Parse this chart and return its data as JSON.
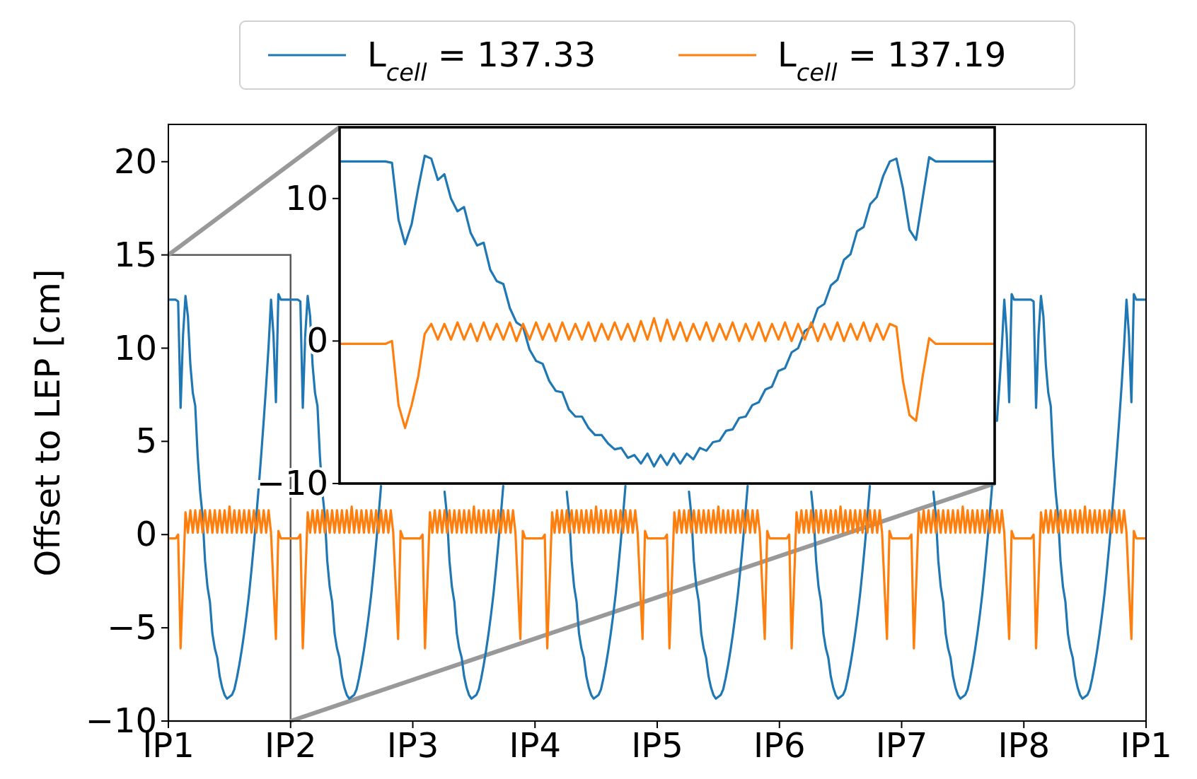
{
  "chart_data": [
    {
      "type": "line",
      "ylabel": "Offset to LEP [cm]",
      "legend": "top",
      "grid": false,
      "categories": [
        "IP1",
        null,
        null,
        null,
        null,
        null,
        null,
        null,
        null,
        null,
        null,
        null,
        null,
        null,
        null,
        null,
        null,
        null,
        null,
        null,
        null,
        null,
        null,
        null,
        null,
        null,
        null,
        null,
        null,
        null,
        null,
        null,
        null,
        null,
        null,
        null,
        null,
        null,
        null,
        null,
        null,
        null,
        null,
        null,
        null,
        null,
        null,
        null,
        null,
        null,
        "IP2",
        null,
        null,
        null,
        null,
        null,
        null,
        null,
        null,
        null,
        null,
        null,
        null,
        null,
        null,
        null,
        null,
        null,
        null,
        null,
        null,
        null,
        null,
        null,
        null,
        null,
        null,
        null,
        null,
        null,
        null,
        null,
        null,
        null,
        null,
        null,
        null,
        null,
        null,
        null,
        null,
        null,
        null,
        null,
        null,
        null,
        null,
        null,
        null,
        null,
        "IP3",
        null,
        null,
        null,
        null,
        null,
        null,
        null,
        null,
        null,
        null,
        null,
        null,
        null,
        null,
        null,
        null,
        null,
        null,
        null,
        null,
        null,
        null,
        null,
        null,
        null,
        null,
        null,
        null,
        null,
        null,
        null,
        null,
        null,
        null,
        null,
        null,
        null,
        null,
        null,
        null,
        null,
        null,
        null,
        null,
        null,
        null,
        null,
        null,
        null,
        "IP4",
        null,
        null,
        null,
        null,
        null,
        null,
        null,
        null,
        null,
        null,
        null,
        null,
        null,
        null,
        null,
        null,
        null,
        null,
        null,
        null,
        null,
        null,
        null,
        null,
        null,
        null,
        null,
        null,
        null,
        null,
        null,
        null,
        null,
        null,
        null,
        null,
        null,
        null,
        null,
        null,
        null,
        null,
        null,
        null,
        null,
        null,
        null,
        null,
        null,
        "IP5",
        null,
        null,
        null,
        null,
        null,
        null,
        null,
        null,
        null,
        null,
        null,
        null,
        null,
        null,
        null,
        null,
        null,
        null,
        null,
        null,
        null,
        null,
        null,
        null,
        null,
        null,
        null,
        null,
        null,
        null,
        null,
        null,
        null,
        null,
        null,
        null,
        null,
        null,
        null,
        null,
        null,
        null,
        null,
        null,
        null,
        null,
        null,
        null,
        null,
        "IP6",
        null,
        null,
        null,
        null,
        null,
        null,
        null,
        null,
        null,
        null,
        null,
        null,
        null,
        null,
        null,
        null,
        null,
        null,
        null,
        null,
        null,
        null,
        null,
        null,
        null,
        null,
        null,
        null,
        null,
        null,
        null,
        null,
        null,
        null,
        null,
        null,
        null,
        null,
        null,
        null,
        null,
        null,
        null,
        null,
        null,
        null,
        null,
        null,
        null,
        "IP7",
        null,
        null,
        null,
        null,
        null,
        null,
        null,
        null,
        null,
        null,
        null,
        null,
        null,
        null,
        null,
        null,
        null,
        null,
        null,
        null,
        null,
        null,
        null,
        null,
        null,
        null,
        null,
        null,
        null,
        null,
        null,
        null,
        null,
        null,
        null,
        null,
        null,
        null,
        null,
        null,
        null,
        null,
        null,
        null,
        null,
        null,
        null,
        null,
        null,
        "IP8",
        null,
        null,
        null,
        null,
        null,
        null,
        null,
        null,
        null,
        null,
        null,
        null,
        null,
        null,
        null,
        null,
        null,
        null,
        null,
        null,
        null,
        null,
        null,
        null,
        null,
        null,
        null,
        null,
        null,
        null,
        null,
        null,
        null,
        null,
        null,
        null,
        null,
        null,
        null,
        null,
        null,
        null,
        null,
        null,
        null,
        null,
        null,
        null,
        null,
        "IP1"
      ],
      "ylim": [
        -10,
        22
      ],
      "yticks": [
        -10,
        -5,
        0,
        5,
        10,
        15,
        20
      ],
      "series": [
        {
          "name": "L$_{cell}$ = 137.33",
          "color": "#1f77b4",
          "values": [
            12.6,
            12.6,
            12.6,
            12.6,
            12.5,
            6.8,
            10.7,
            12.8,
            11.7,
            9.1,
            7.6,
            6.9,
            4.2,
            2.3,
            1,
            -1.4,
            -2.8,
            -3.6,
            -5.3,
            -6.1,
            -6.6,
            -7.6,
            -8.2,
            -8.6,
            -8.8,
            -8.7,
            -8.6,
            -8.3,
            -7.7,
            -7,
            -6.2,
            -5.3,
            -4.3,
            -3.2,
            -1.9,
            -0.5,
            1,
            2.6,
            4.3,
            6.1,
            8,
            10.1,
            12.6,
            10.7,
            7.1,
            12.9,
            12.6,
            12.6,
            12.6,
            12.6,
            12.6,
            12.6,
            12.6,
            12.6,
            12.5,
            6.8,
            10.7,
            12.8,
            11.7,
            9.1,
            7.6,
            6.9,
            4.2,
            2.3,
            1,
            -1.4,
            -2.8,
            -3.6,
            -5.3,
            -6.1,
            -6.6,
            -7.6,
            -8.2,
            -8.6,
            -8.8,
            -8.7,
            -8.6,
            -8.3,
            -7.7,
            -7,
            -6.2,
            -5.3,
            -4.3,
            -3.2,
            -1.9,
            -0.5,
            1,
            2.6,
            null,
            null,
            null,
            null,
            null,
            null,
            null,
            null,
            null,
            null,
            null,
            null,
            null,
            null,
            null,
            null,
            null,
            null,
            null,
            null,
            null,
            null,
            null,
            null,
            null,
            2.3,
            1,
            -1.4,
            -2.8,
            -3.6,
            -5.3,
            -6.1,
            -6.6,
            -7.6,
            -8.2,
            -8.6,
            -8.8,
            -8.7,
            -8.6,
            -8.3,
            -7.7,
            -7,
            -6.2,
            -5.3,
            -4.3,
            -3.2,
            -1.9,
            -0.5,
            1,
            2.6,
            null,
            null,
            null,
            null,
            null,
            null,
            null,
            null,
            null,
            null,
            null,
            null,
            null,
            null,
            null,
            null,
            null,
            null,
            null,
            null,
            null,
            null,
            null,
            null,
            null,
            2.3,
            1,
            -1.4,
            -2.8,
            -3.6,
            -5.3,
            -6.1,
            -6.6,
            -7.6,
            -8.2,
            -8.6,
            -8.8,
            -8.7,
            -8.6,
            -8.3,
            -7.7,
            -7,
            -6.2,
            -5.3,
            -4.3,
            -3.2,
            -1.9,
            -0.5,
            1,
            2.6,
            null,
            null,
            null,
            null,
            null,
            null,
            null,
            null,
            null,
            null,
            null,
            null,
            null,
            null,
            null,
            null,
            null,
            null,
            null,
            null,
            null,
            null,
            null,
            null,
            null,
            2.3,
            1,
            -1.4,
            -2.8,
            -3.6,
            -5.3,
            -6.1,
            -6.6,
            -7.6,
            -8.2,
            -8.6,
            -8.8,
            -8.7,
            -8.6,
            -8.3,
            -7.7,
            -7,
            -6.2,
            -5.3,
            -4.3,
            -3.2,
            -1.9,
            -0.5,
            1,
            2.6,
            null,
            null,
            null,
            null,
            null,
            null,
            null,
            null,
            null,
            null,
            null,
            null,
            null,
            null,
            null,
            null,
            null,
            null,
            null,
            null,
            null,
            null,
            null,
            null,
            null,
            2.3,
            1,
            -1.4,
            -2.8,
            -3.6,
            -5.3,
            -6.1,
            -6.6,
            -7.6,
            -8.2,
            -8.6,
            -8.8,
            -8.7,
            -8.6,
            -8.3,
            -7.7,
            -7,
            -6.2,
            -5.3,
            -4.3,
            -3.2,
            -1.9,
            -0.5,
            1,
            2.6,
            null,
            null,
            null,
            null,
            null,
            null,
            null,
            null,
            null,
            null,
            null,
            null,
            null,
            null,
            null,
            null,
            null,
            null,
            null,
            null,
            null,
            null,
            null,
            null,
            null,
            2.3,
            1,
            -1.4,
            -2.8,
            -3.6,
            -5.3,
            -6.1,
            -6.6,
            -7.6,
            -8.2,
            -8.6,
            -8.8,
            -8.7,
            -8.6,
            -8.3,
            -7.7,
            -7,
            -6.2,
            -5.3,
            -4.3,
            -3.2,
            -1.9,
            -0.5,
            1,
            2.6,
            null,
            6.1,
            8,
            10.1,
            12.6,
            10.7,
            7.1,
            12.9,
            12.6,
            12.6,
            12.6,
            12.6,
            12.6,
            12.6,
            12.6,
            12.6,
            12.5,
            6.8,
            10.7,
            12.8,
            11.7,
            9.1,
            7.6,
            6.9,
            4.2,
            2.3,
            1,
            -1.4,
            -2.8,
            -3.6,
            -5.3,
            -6.1,
            -6.6,
            -7.6,
            -8.2,
            -8.6,
            -8.8,
            -8.7,
            -8.6,
            -8.3,
            -7.7,
            -7,
            -6.2,
            -5.3,
            -4.3,
            -3.2,
            -1.9,
            -0.5,
            1,
            2.6,
            4.3,
            6.1,
            8,
            10.1,
            12.6,
            10.7,
            7.1,
            12.9,
            12.6,
            12.6,
            12.6,
            12.6,
            12.6
          ]
        },
        {
          "name": "L$_{cell}$ = 137.19",
          "color": "#ff7f0e",
          "values": [
            -0.2,
            -0.2,
            -0.2,
            -0.2,
            0,
            -6.1,
            -2.5,
            1.2,
            0.1,
            1.3,
            0.1,
            1.3,
            0.1,
            1.3,
            0.1,
            1.3,
            0.1,
            1.3,
            0.1,
            1.3,
            0.1,
            1.3,
            0.1,
            1.3,
            0.1,
            1.5,
            0.1,
            1.3,
            0.1,
            1.3,
            0.1,
            1.3,
            0.1,
            1.3,
            0.1,
            1.3,
            0.1,
            1.3,
            0.1,
            1.3,
            0.1,
            1.3,
            0.1,
            -2.8,
            -5.6,
            0.2,
            -0.2,
            -0.2,
            -0.2,
            -0.2,
            -0.2,
            -0.2,
            -0.2,
            -0.2,
            0,
            -6.1,
            -2.5,
            1.2,
            0.1,
            1.3,
            0.1,
            1.3,
            0.1,
            1.3,
            0.1,
            1.3,
            0.1,
            1.3,
            0.1,
            1.3,
            0.1,
            1.3,
            0.1,
            1.3,
            0.1,
            1.5,
            0.1,
            1.3,
            0.1,
            1.3,
            0.1,
            1.3,
            0.1,
            1.3,
            0.1,
            1.3,
            0.1,
            1.3,
            0.1,
            1.3,
            0.1,
            1.3,
            0.1,
            -2.8,
            -5.6,
            0.2,
            -0.2,
            -0.2,
            -0.2,
            -0.2,
            -0.2,
            -0.2,
            -0.2,
            -0.2,
            0,
            -6.1,
            -2.5,
            1.2,
            0.1,
            1.3,
            0.1,
            1.3,
            0.1,
            1.3,
            0.1,
            1.3,
            0.1,
            1.3,
            0.1,
            1.3,
            0.1,
            1.3,
            0.1,
            1.3,
            0.1,
            1.5,
            0.1,
            1.3,
            0.1,
            1.3,
            0.1,
            1.3,
            0.1,
            1.3,
            0.1,
            1.3,
            0.1,
            1.3,
            0.1,
            1.3,
            0.1,
            1.3,
            0.1,
            -2.8,
            -5.6,
            0.2,
            -0.2,
            -0.2,
            -0.2,
            -0.2,
            -0.2,
            -0.2,
            -0.2,
            -0.2,
            0,
            -6.1,
            -2.5,
            1.2,
            0.1,
            1.3,
            0.1,
            1.3,
            0.1,
            1.3,
            0.1,
            1.3,
            0.1,
            1.3,
            0.1,
            1.3,
            0.1,
            1.3,
            0.1,
            1.3,
            0.1,
            1.5,
            0.1,
            1.3,
            0.1,
            1.3,
            0.1,
            1.3,
            0.1,
            1.3,
            0.1,
            1.3,
            0.1,
            1.3,
            0.1,
            1.3,
            0.1,
            1.3,
            0.1,
            -2.8,
            -5.6,
            0.2,
            -0.2,
            -0.2,
            -0.2,
            -0.2,
            -0.2,
            -0.2,
            -0.2,
            -0.2,
            0,
            -6.1,
            -2.5,
            1.2,
            0.1,
            1.3,
            0.1,
            1.3,
            0.1,
            1.3,
            0.1,
            1.3,
            0.1,
            1.3,
            0.1,
            1.3,
            0.1,
            1.3,
            0.1,
            1.3,
            0.1,
            1.5,
            0.1,
            1.3,
            0.1,
            1.3,
            0.1,
            1.3,
            0.1,
            1.3,
            0.1,
            1.3,
            0.1,
            1.3,
            0.1,
            1.3,
            0.1,
            1.3,
            0.1,
            -2.8,
            -5.6,
            0.2,
            -0.2,
            -0.2,
            -0.2,
            -0.2,
            -0.2,
            -0.2,
            -0.2,
            -0.2,
            0,
            -6.1,
            -2.5,
            1.2,
            0.1,
            1.3,
            0.1,
            1.3,
            0.1,
            1.3,
            0.1,
            1.3,
            0.1,
            1.3,
            0.1,
            1.3,
            0.1,
            1.3,
            0.1,
            1.3,
            0.1,
            1.5,
            0.1,
            1.3,
            0.1,
            1.3,
            0.1,
            1.3,
            0.1,
            1.3,
            0.1,
            1.3,
            0.1,
            1.3,
            0.1,
            1.3,
            0.1,
            1.3,
            0.1,
            -2.8,
            -5.6,
            0.2,
            -0.2,
            -0.2,
            -0.2,
            -0.2,
            -0.2,
            -0.2,
            -0.2,
            -0.2,
            0,
            -6.1,
            -2.5,
            1.2,
            0.1,
            1.3,
            0.1,
            1.3,
            0.1,
            1.3,
            0.1,
            1.3,
            0.1,
            1.3,
            0.1,
            1.3,
            0.1,
            1.3,
            0.1,
            1.3,
            0.1,
            1.5,
            0.1,
            1.3,
            0.1,
            1.3,
            0.1,
            1.3,
            0.1,
            1.3,
            0.1,
            1.3,
            0.1,
            1.3,
            0.1,
            1.3,
            0.1,
            1.3,
            0.1,
            -2.8,
            -5.6,
            0.2,
            -0.2,
            -0.2,
            -0.2,
            -0.2,
            -0.2,
            -0.2,
            -0.2,
            -0.2,
            0,
            -6.1,
            -2.5,
            1.2,
            0.1,
            1.3,
            0.1,
            1.3,
            0.1,
            1.3,
            0.1,
            1.3,
            0.1,
            1.3,
            0.1,
            1.3,
            0.1,
            1.3,
            0.1,
            1.3,
            0.1,
            1.5,
            0.1,
            1.3,
            0.1,
            1.3,
            0.1,
            1.3,
            0.1,
            1.3,
            0.1,
            1.3,
            0.1,
            1.3,
            0.1,
            1.3,
            0.1,
            1.3,
            0.1,
            -2.8,
            -5.6,
            0.2,
            -0.2,
            -0.2,
            -0.2,
            -0.2,
            -0.2
          ]
        }
      ]
    },
    {
      "type": "line",
      "grid": false,
      "tick_labels": "y",
      "categories": [
        null,
        null,
        null,
        null,
        null,
        null,
        null,
        null,
        null,
        null,
        null,
        null,
        null,
        null,
        null,
        null,
        null,
        null,
        null,
        null,
        null,
        null,
        null,
        null,
        null,
        null,
        null,
        null,
        null,
        null,
        null,
        null,
        null,
        null,
        null,
        null,
        null,
        null,
        null,
        null,
        null,
        null,
        null,
        null,
        null,
        null,
        null,
        null,
        null,
        null,
        null,
        null,
        null,
        null,
        null,
        null,
        null,
        null,
        null,
        null,
        null,
        null,
        null,
        null,
        null,
        null,
        null,
        null,
        null,
        null,
        null,
        null,
        null,
        null,
        null,
        null,
        null,
        null,
        null,
        null,
        null,
        null,
        null,
        null,
        null,
        null,
        null,
        null,
        null,
        null,
        null,
        null,
        null,
        null,
        null,
        null,
        null,
        null,
        null,
        null,
        null
      ],
      "ylim": [
        -10,
        15
      ],
      "yticks": [
        -10,
        0,
        10
      ],
      "series": [
        {
          "color": "#1f77b4",
          "values": [
            12.6,
            12.6,
            12.6,
            12.6,
            12.6,
            12.6,
            12.6,
            12.6,
            12.5,
            8.5,
            6.8,
            8.2,
            10.7,
            13,
            12.8,
            11.3,
            11.7,
            10,
            9.1,
            9.4,
            7.6,
            6.7,
            6.9,
            5,
            4.2,
            4,
            2.3,
            1.3,
            1,
            -0.6,
            -1.4,
            -1.6,
            -2.8,
            -3.5,
            -3.6,
            -4.8,
            -5.3,
            -5.3,
            -6.1,
            -6.6,
            -6.6,
            -7.2,
            -7.6,
            -7.5,
            -8.2,
            -8,
            -8.6,
            -7.9,
            -8.8,
            -8,
            -8.7,
            -7.9,
            -8.6,
            -7.9,
            -8.3,
            -7.5,
            -7.7,
            -7.1,
            -7,
            -6.3,
            -6.2,
            -5.4,
            -5.3,
            -4.5,
            -4.3,
            -3.4,
            -3.2,
            -2.1,
            -1.9,
            -0.8,
            -0.5,
            0.7,
            1,
            2.3,
            2.6,
            3.9,
            4.3,
            5.7,
            6.1,
            7.7,
            8,
            9.6,
            10.1,
            11.6,
            12.6,
            12.8,
            10.7,
            7.8,
            7.1,
            10,
            12.9,
            12.6,
            12.6,
            12.6,
            12.6,
            12.6,
            12.6,
            12.6,
            12.6,
            12.6,
            12.6
          ]
        },
        {
          "color": "#ff7f0e",
          "values": [
            -0.2,
            -0.2,
            -0.2,
            -0.2,
            -0.2,
            -0.2,
            -0.2,
            -0.2,
            0,
            -4.5,
            -6.1,
            -4.5,
            -2.5,
            0.5,
            1.2,
            0.1,
            1.2,
            0.1,
            1.3,
            0.1,
            1.2,
            0,
            1.3,
            0.1,
            1.2,
            0.1,
            1.3,
            0,
            1.2,
            0.1,
            1.3,
            0.1,
            1.2,
            0,
            1.3,
            0.1,
            1.2,
            0.1,
            1.3,
            0,
            1.2,
            0.1,
            1.3,
            0.1,
            1.2,
            0,
            1.4,
            0.1,
            1.6,
            0,
            1.5,
            0.1,
            1.3,
            0,
            1.2,
            0.1,
            1.3,
            0,
            1.2,
            0.1,
            1.3,
            0,
            1.2,
            0.1,
            1.3,
            0,
            1.2,
            0.1,
            1.3,
            0,
            1.2,
            0.1,
            1.3,
            0,
            1.2,
            0.1,
            1.3,
            0,
            1.2,
            0.1,
            1.3,
            0,
            1.2,
            0.1,
            1.2,
            1,
            -2.8,
            -5.2,
            -5.6,
            -2.5,
            0.2,
            -0.2,
            -0.2,
            -0.2,
            -0.2,
            -0.2,
            -0.2,
            -0.2,
            -0.2,
            -0.2,
            -0.2
          ]
        }
      ]
    }
  ]
}
